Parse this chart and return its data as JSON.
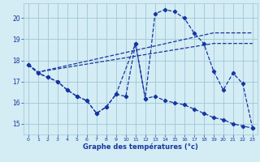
{
  "background_color": "#d4ecf4",
  "grid_color": "#9ec8d8",
  "line_color": "#1535a0",
  "xlabel": "Graphe des températures (°c)",
  "ylim": [
    14.5,
    20.7
  ],
  "xlim": [
    -0.5,
    23.5
  ],
  "yticks": [
    15,
    16,
    17,
    18,
    19,
    20
  ],
  "xticks": [
    0,
    1,
    2,
    3,
    4,
    5,
    6,
    7,
    8,
    9,
    10,
    11,
    12,
    13,
    14,
    15,
    16,
    17,
    18,
    19,
    20,
    21,
    22,
    23
  ],
  "series1_x": [
    0,
    1,
    2,
    3,
    4,
    5,
    6,
    7,
    8,
    9,
    11,
    12,
    13,
    14,
    15,
    16,
    17,
    18,
    19,
    20,
    21,
    22,
    23
  ],
  "series1_y": [
    17.8,
    17.4,
    17.2,
    17.0,
    16.6,
    16.3,
    16.1,
    15.5,
    15.8,
    16.4,
    18.8,
    16.2,
    20.2,
    20.4,
    20.3,
    20.0,
    19.3,
    18.8,
    17.5,
    16.6,
    17.4,
    16.9,
    14.8
  ],
  "series2_x": [
    0,
    1,
    2,
    3,
    4,
    5,
    6,
    7,
    8,
    9,
    10,
    11,
    12,
    13,
    14,
    15,
    16,
    17,
    18,
    19,
    20,
    21,
    22,
    23
  ],
  "series2_y": [
    17.8,
    17.4,
    17.2,
    17.0,
    16.6,
    16.3,
    16.1,
    15.5,
    15.8,
    16.4,
    16.3,
    18.8,
    16.2,
    16.3,
    16.1,
    16.0,
    15.9,
    15.7,
    15.5,
    15.3,
    15.2,
    15.0,
    14.9,
    14.8
  ],
  "series3_x": [
    0,
    1,
    19,
    23
  ],
  "series3_y": [
    17.8,
    17.45,
    19.3,
    19.3
  ],
  "series4_x": [
    0,
    1,
    19,
    23
  ],
  "series4_y": [
    17.8,
    17.45,
    18.8,
    18.8
  ]
}
